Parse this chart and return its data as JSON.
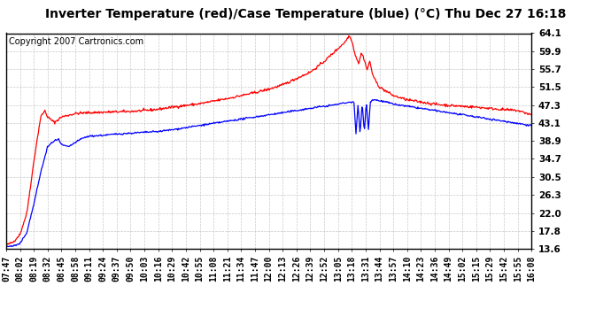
{
  "title": "Inverter Temperature (red)/Case Temperature (blue) (°C) Thu Dec 27 16:18",
  "copyright_text": "Copyright 2007 Cartronics.com",
  "yticks": [
    13.6,
    17.8,
    22.0,
    26.3,
    30.5,
    34.7,
    38.9,
    43.1,
    47.3,
    51.5,
    55.7,
    59.9,
    64.1
  ],
  "ylim": [
    13.6,
    64.1
  ],
  "background_color": "#ffffff",
  "plot_bg_color": "#ffffff",
  "grid_color": "#bbbbbb",
  "red_color": "#ff0000",
  "blue_color": "#0000ff",
  "title_fontsize": 10,
  "tick_fontsize": 7.5,
  "copyright_fontsize": 7,
  "xtick_labels": [
    "07:47",
    "08:02",
    "08:19",
    "08:32",
    "08:45",
    "08:58",
    "09:11",
    "09:24",
    "09:37",
    "09:50",
    "10:03",
    "10:16",
    "10:29",
    "10:42",
    "10:55",
    "11:08",
    "11:21",
    "11:34",
    "11:47",
    "12:00",
    "12:13",
    "12:26",
    "12:39",
    "12:52",
    "13:05",
    "13:18",
    "13:31",
    "13:44",
    "13:57",
    "14:10",
    "14:23",
    "14:36",
    "14:49",
    "15:02",
    "15:15",
    "15:29",
    "15:42",
    "15:55",
    "16:08"
  ]
}
